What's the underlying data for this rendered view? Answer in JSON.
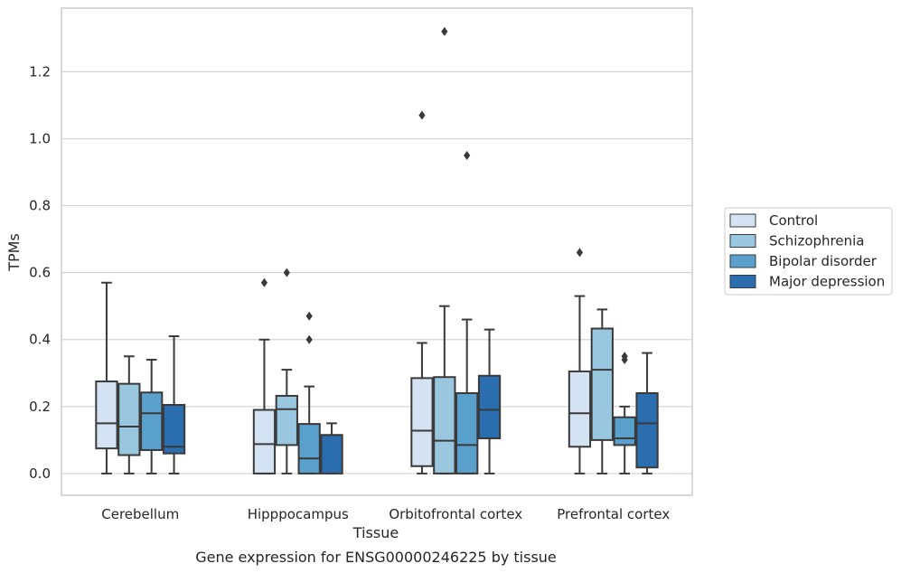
{
  "chart_data": {
    "type": "box",
    "title": "",
    "caption": "Gene expression for ENSG00000246225 by tissue",
    "xlabel": "Tissue",
    "ylabel": "TPMs",
    "ylim": [
      -0.065,
      1.39
    ],
    "yticks": [
      0.0,
      0.2,
      0.4,
      0.6,
      0.8,
      1.0,
      1.2
    ],
    "ytick_labels": [
      "0.0",
      "0.2",
      "0.4",
      "0.6",
      "0.8",
      "1.0",
      "1.2"
    ],
    "categories": [
      "Cerebellum",
      "Hipppocampus",
      "Orbitofrontal cortex",
      "Prefrontal cortex"
    ],
    "grid": "horizontal",
    "legend_position": "right",
    "series": [
      {
        "name": "Control",
        "color": "#d3e3f3",
        "boxes": [
          {
            "whisker_low": 0.0,
            "q1": 0.075,
            "median": 0.15,
            "q3": 0.275,
            "whisker_high": 0.57,
            "outliers": []
          },
          {
            "whisker_low": 0.0,
            "q1": 0.0,
            "median": 0.088,
            "q3": 0.19,
            "whisker_high": 0.4,
            "outliers": [
              0.57
            ]
          },
          {
            "whisker_low": 0.0,
            "q1": 0.022,
            "median": 0.128,
            "q3": 0.285,
            "whisker_high": 0.39,
            "outliers": [
              1.07
            ]
          },
          {
            "whisker_low": 0.0,
            "q1": 0.08,
            "median": 0.18,
            "q3": 0.305,
            "whisker_high": 0.53,
            "outliers": [
              0.66
            ]
          }
        ]
      },
      {
        "name": "Schizophrenia",
        "color": "#9ac7e0",
        "boxes": [
          {
            "whisker_low": 0.0,
            "q1": 0.055,
            "median": 0.14,
            "q3": 0.268,
            "whisker_high": 0.35,
            "outliers": []
          },
          {
            "whisker_low": 0.0,
            "q1": 0.085,
            "median": 0.192,
            "q3": 0.232,
            "whisker_high": 0.31,
            "outliers": [
              0.6
            ]
          },
          {
            "whisker_low": 0.0,
            "q1": 0.0,
            "median": 0.098,
            "q3": 0.288,
            "whisker_high": 0.5,
            "outliers": [
              1.32
            ]
          },
          {
            "whisker_low": 0.0,
            "q1": 0.1,
            "median": 0.31,
            "q3": 0.433,
            "whisker_high": 0.49,
            "outliers": []
          }
        ]
      },
      {
        "name": "Bipolar disorder",
        "color": "#5aa0cd",
        "boxes": [
          {
            "whisker_low": 0.0,
            "q1": 0.07,
            "median": 0.18,
            "q3": 0.242,
            "whisker_high": 0.34,
            "outliers": []
          },
          {
            "whisker_low": 0.0,
            "q1": 0.0,
            "median": 0.045,
            "q3": 0.148,
            "whisker_high": 0.26,
            "outliers": [
              0.4,
              0.47
            ]
          },
          {
            "whisker_low": 0.0,
            "q1": 0.0,
            "median": 0.085,
            "q3": 0.24,
            "whisker_high": 0.46,
            "outliers": [
              0.95
            ]
          },
          {
            "whisker_low": 0.0,
            "q1": 0.085,
            "median": 0.105,
            "q3": 0.168,
            "whisker_high": 0.2,
            "outliers": [
              0.34,
              0.35
            ]
          }
        ]
      },
      {
        "name": "Major depression",
        "color": "#2a6eb0",
        "boxes": [
          {
            "whisker_low": 0.0,
            "q1": 0.06,
            "median": 0.08,
            "q3": 0.205,
            "whisker_high": 0.41,
            "outliers": []
          },
          {
            "whisker_low": 0.0,
            "q1": 0.0,
            "median": 0.115,
            "q3": 0.115,
            "whisker_high": 0.15,
            "outliers": []
          },
          {
            "whisker_low": 0.0,
            "q1": 0.105,
            "median": 0.19,
            "q3": 0.292,
            "whisker_high": 0.43,
            "outliers": []
          },
          {
            "whisker_low": 0.0,
            "q1": 0.018,
            "median": 0.15,
            "q3": 0.24,
            "whisker_high": 0.36,
            "outliers": []
          }
        ]
      }
    ]
  }
}
